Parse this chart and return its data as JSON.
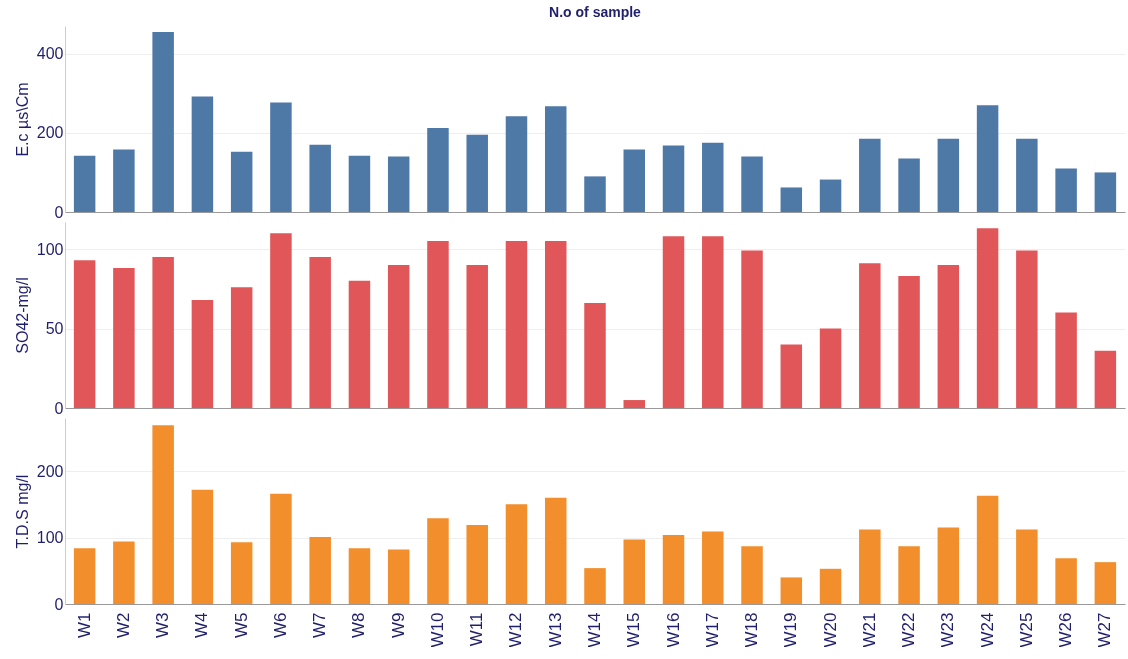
{
  "chart_data": [
    {
      "type": "bar",
      "title": "N.o of sample",
      "ylabel": "E.c µs\\Cm",
      "categories": [
        "W1",
        "W2",
        "W3",
        "W4",
        "W5",
        "W6",
        "W7",
        "W8",
        "W9",
        "W10",
        "W11",
        "W12",
        "W13",
        "W14",
        "W15",
        "W16",
        "W17",
        "W18",
        "W19",
        "W20",
        "W21",
        "W22",
        "W23",
        "W24",
        "W25",
        "W26",
        "W27"
      ],
      "series": [
        {
          "color": "#4e79a7",
          "values": [
            142,
            158,
            455,
            292,
            152,
            277,
            170,
            142,
            140,
            212,
            195,
            242,
            267,
            90,
            158,
            168,
            175,
            140,
            62,
            82,
            185,
            135,
            185,
            270,
            185,
            110,
            100
          ]
        }
      ],
      "ylim": [
        0,
        470
      ],
      "yticks": [
        0,
        200,
        400
      ],
      "grid": "y",
      "tick_labels": "y"
    },
    {
      "type": "bar",
      "ylabel": "SO42-mg/l",
      "categories": [
        "W1",
        "W2",
        "W3",
        "W4",
        "W5",
        "W6",
        "W7",
        "W8",
        "W9",
        "W10",
        "W11",
        "W12",
        "W13",
        "W14",
        "W15",
        "W16",
        "W17",
        "W18",
        "W19",
        "W20",
        "W21",
        "W22",
        "W23",
        "W24",
        "W25",
        "W26",
        "W27"
      ],
      "series": [
        {
          "color": "#e15759",
          "values": [
            93,
            88,
            95,
            68,
            76,
            110,
            95,
            80,
            90,
            105,
            90,
            105,
            105,
            66,
            5,
            108,
            108,
            99,
            40,
            50,
            91,
            83,
            90,
            113,
            99,
            60,
            36
          ]
        }
      ],
      "ylim": [
        0,
        117
      ],
      "yticks": [
        0,
        50,
        100
      ],
      "grid": "y",
      "tick_labels": "y"
    },
    {
      "type": "bar",
      "ylabel": "T.D.S mg/l",
      "categories": [
        "W1",
        "W2",
        "W3",
        "W4",
        "W5",
        "W6",
        "W7",
        "W8",
        "W9",
        "W10",
        "W11",
        "W12",
        "W13",
        "W14",
        "W15",
        "W16",
        "W17",
        "W18",
        "W19",
        "W20",
        "W21",
        "W22",
        "W23",
        "W24",
        "W25",
        "W26",
        "W27"
      ],
      "series": [
        {
          "color": "#f28e2b",
          "values": [
            84,
            94,
            269,
            172,
            93,
            166,
            101,
            84,
            82,
            129,
            119,
            150,
            160,
            54,
            97,
            104,
            109,
            87,
            40,
            53,
            112,
            87,
            115,
            163,
            112,
            69,
            63
          ]
        }
      ],
      "ylim": [
        0,
        280
      ],
      "yticks": [
        0,
        100,
        200
      ],
      "grid": "y"
    }
  ]
}
